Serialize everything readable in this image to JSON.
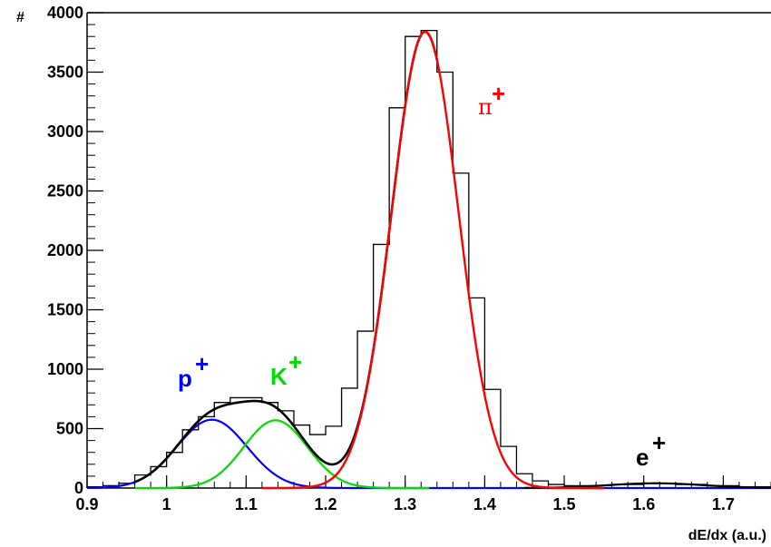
{
  "chart_data": {
    "type": "line",
    "xlabel": "dE/dx (a.u.)",
    "ylabel": "#",
    "xlim": [
      0.9,
      1.76
    ],
    "ylim": [
      0,
      4000
    ],
    "x_ticks": [
      "0.9",
      "1",
      "1.1",
      "1.2",
      "1.3",
      "1.4",
      "1.5",
      "1.6",
      "1.7"
    ],
    "y_ticks": [
      "0",
      "500",
      "1000",
      "1500",
      "2000",
      "2500",
      "3000",
      "3500",
      "4000"
    ],
    "colors": {
      "histogram": "#000000",
      "total_fit": "#000000",
      "proton": "#0000ff",
      "kaon": "#00dd00",
      "pion": "#ff0000",
      "electron": "#000000"
    },
    "annotations": {
      "proton": "p",
      "kaon": "K",
      "pion": "π",
      "electron": "e",
      "charge": "+"
    },
    "histogram": {
      "bin_width": 0.02,
      "bin_low_edges": [
        0.9,
        0.92,
        0.94,
        0.96,
        0.98,
        1.0,
        1.02,
        1.04,
        1.06,
        1.08,
        1.1,
        1.12,
        1.14,
        1.16,
        1.18,
        1.2,
        1.22,
        1.24,
        1.26,
        1.28,
        1.3,
        1.32,
        1.34,
        1.36,
        1.38,
        1.4,
        1.42,
        1.44,
        1.46,
        1.48,
        1.5,
        1.52,
        1.54,
        1.56,
        1.58,
        1.6,
        1.62,
        1.64,
        1.66,
        1.68,
        1.7,
        1.72,
        1.74
      ],
      "counts": [
        10,
        20,
        40,
        110,
        180,
        300,
        490,
        600,
        720,
        760,
        760,
        720,
        650,
        530,
        450,
        520,
        840,
        1320,
        2050,
        3200,
        3800,
        3850,
        3500,
        2650,
        1600,
        830,
        350,
        120,
        60,
        30,
        20,
        20,
        20,
        30,
        30,
        40,
        40,
        30,
        30,
        20,
        20,
        10,
        10
      ]
    },
    "peaks": [
      {
        "name": "p",
        "mean": 1.057,
        "sigma": 0.044,
        "amplitude": 575
      },
      {
        "name": "K",
        "mean": 1.137,
        "sigma": 0.04,
        "amplitude": 570
      },
      {
        "name": "π",
        "mean": 1.325,
        "sigma": 0.042,
        "amplitude": 3840
      },
      {
        "name": "e",
        "mean": 1.615,
        "sigma": 0.06,
        "amplitude": 40
      }
    ]
  }
}
